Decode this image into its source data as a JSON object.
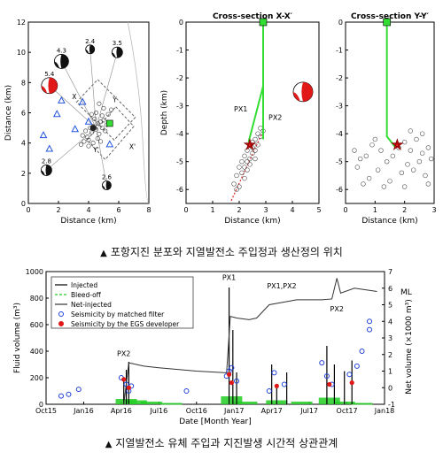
{
  "colors": {
    "injected": "#000000",
    "bleedoff": "#22cc22",
    "net": "#333333",
    "seismic_mf": "#1f3fd6",
    "seismic_dev": "#e01818",
    "well": "#33dd33",
    "beachball_fill": "#111111",
    "beachball_red": "#e01818",
    "station": "#2255dd"
  },
  "chart_data": [
    {
      "type": "scatter",
      "panel": "map",
      "xlabel": "Distance (km)",
      "ylabel": "Distance (km)",
      "xlim": [
        0,
        8
      ],
      "ylim": [
        0,
        12
      ],
      "xticks": [
        0,
        2,
        4,
        6,
        8
      ],
      "yticks": [
        0,
        2,
        4,
        6,
        8,
        10,
        12
      ],
      "annotations": [
        "4.3",
        "2.4",
        "3.5",
        "5.4",
        "X",
        "Y",
        "2.8",
        "2.6",
        "Y'",
        "X'"
      ],
      "stations": [
        [
          2.2,
          6.8
        ],
        [
          3.6,
          6.7
        ],
        [
          1.9,
          5.9
        ],
        [
          4.0,
          5.4
        ],
        [
          1.0,
          4.5
        ],
        [
          3.1,
          4.9
        ],
        [
          1.4,
          3.6
        ],
        [
          5.4,
          3.9
        ]
      ],
      "well_site": [
        5.4,
        5.3
      ],
      "events": [
        [
          4.3,
          5.1
        ],
        [
          4.5,
          4.9
        ],
        [
          4.6,
          5.3
        ],
        [
          4.8,
          5.4
        ],
        [
          4.2,
          4.7
        ],
        [
          4.1,
          5.0
        ],
        [
          4.7,
          4.6
        ],
        [
          4.9,
          5.0
        ],
        [
          5.0,
          5.5
        ],
        [
          4.4,
          5.6
        ],
        [
          3.9,
          4.4
        ],
        [
          3.8,
          4.8
        ],
        [
          4.0,
          4.2
        ],
        [
          4.6,
          4.3
        ],
        [
          5.1,
          4.8
        ],
        [
          4.3,
          4.0
        ],
        [
          3.7,
          4.1
        ],
        [
          5.2,
          5.2
        ],
        [
          4.9,
          5.8
        ],
        [
          4.5,
          6.0
        ],
        [
          5.3,
          5.9
        ],
        [
          4.2,
          5.9
        ],
        [
          3.6,
          4.5
        ],
        [
          5.0,
          6.3
        ],
        [
          4.7,
          6.6
        ],
        [
          5.5,
          6.2
        ],
        [
          4.0,
          3.8
        ],
        [
          3.5,
          3.9
        ],
        [
          4.8,
          4.1
        ]
      ],
      "faults": [
        [
          3.4,
          3.5,
          5.9,
          7.0
        ]
      ]
    },
    {
      "type": "scatter",
      "panel": "cross-x",
      "title": "Cross-section X-X′",
      "xlabel": "Distance (km)",
      "ylabel": "Depth (km)",
      "xlim": [
        0,
        5
      ],
      "ylim": [
        -6.5,
        0
      ],
      "xticks": [
        0,
        1,
        2,
        3,
        4,
        5
      ],
      "yticks": [
        0,
        -1,
        -2,
        -3,
        -4,
        -5,
        -6
      ],
      "labels": [
        "PX1",
        "PX2"
      ],
      "wells": [
        [
          [
            2.9,
            0
          ],
          [
            2.9,
            -2.3
          ],
          [
            2.35,
            -4.3
          ]
        ],
        [
          [
            2.9,
            0
          ],
          [
            2.9,
            -4.2
          ]
        ]
      ],
      "mainshock": [
        2.4,
        -4.4
      ],
      "events": [
        [
          2.4,
          -4.4
        ],
        [
          2.5,
          -4.5
        ],
        [
          2.3,
          -4.6
        ],
        [
          2.6,
          -4.2
        ],
        [
          2.2,
          -4.8
        ],
        [
          2.1,
          -5.0
        ],
        [
          2.4,
          -4.9
        ],
        [
          2.0,
          -5.2
        ],
        [
          2.5,
          -4.7
        ],
        [
          2.7,
          -4.0
        ],
        [
          2.8,
          -3.8
        ],
        [
          1.9,
          -5.5
        ],
        [
          2.3,
          -5.3
        ],
        [
          2.2,
          -5.6
        ],
        [
          1.8,
          -5.8
        ],
        [
          2.6,
          -4.9
        ],
        [
          2.0,
          -5.9
        ],
        [
          2.4,
          -5.1
        ],
        [
          2.7,
          -4.4
        ],
        [
          2.9,
          -3.9
        ],
        [
          2.1,
          -5.4
        ],
        [
          1.9,
          -6.0
        ],
        [
          2.5,
          -4.3
        ],
        [
          2.8,
          -4.1
        ],
        [
          2.3,
          -5.0
        ],
        [
          2.2,
          -5.2
        ],
        [
          2.6,
          -4.6
        ]
      ],
      "lineation": [
        [
          1.7,
          -6.4
        ],
        [
          2.9,
          -3.9
        ]
      ]
    },
    {
      "type": "scatter",
      "panel": "cross-y",
      "title": "Cross-section Y-Y′",
      "xlabel": "Distance (km)",
      "xlim": [
        0,
        3
      ],
      "ylim": [
        -6.5,
        0
      ],
      "xticks": [
        0,
        1,
        2,
        3
      ],
      "well": [
        [
          1.4,
          0
        ],
        [
          1.4,
          -4.1
        ],
        [
          1.7,
          -4.5
        ]
      ],
      "mainshock": [
        1.75,
        -4.4
      ],
      "events": [
        [
          1.8,
          -4.5
        ],
        [
          2.0,
          -4.3
        ],
        [
          2.2,
          -4.6
        ],
        [
          2.4,
          -4.2
        ],
        [
          2.6,
          -4.7
        ],
        [
          1.6,
          -4.8
        ],
        [
          1.4,
          -5.0
        ],
        [
          1.2,
          -4.6
        ],
        [
          0.9,
          -4.4
        ],
        [
          0.7,
          -4.8
        ],
        [
          0.5,
          -4.9
        ],
        [
          0.4,
          -5.2
        ],
        [
          2.8,
          -4.5
        ],
        [
          2.5,
          -5.0
        ],
        [
          2.3,
          -5.3
        ],
        [
          2.1,
          -5.1
        ],
        [
          1.9,
          -5.4
        ],
        [
          2.7,
          -5.5
        ],
        [
          2.9,
          -4.9
        ],
        [
          1.1,
          -5.3
        ],
        [
          0.8,
          -5.6
        ],
        [
          1.5,
          -5.7
        ],
        [
          2.0,
          -5.9
        ],
        [
          0.3,
          -4.6
        ],
        [
          2.6,
          -4.0
        ],
        [
          2.2,
          -3.9
        ],
        [
          1.0,
          -4.2
        ],
        [
          0.6,
          -5.8
        ],
        [
          2.8,
          -5.8
        ],
        [
          1.3,
          -5.9
        ]
      ]
    },
    {
      "type": "line",
      "panel": "timeline",
      "xlabel": "Date [Month Year]",
      "ylabel": "Fluid volume (m³)",
      "y2label": "Net volume (×1000 m³)",
      "mlabel": "ML",
      "xticklabels": [
        "Oct15",
        "Jan16",
        "Apr16",
        "Jul16",
        "Oct16",
        "Jan17",
        "Apr17",
        "Jul17",
        "Oct17",
        "Jan18"
      ],
      "ylim": [
        0,
        1000
      ],
      "yticks": [
        0,
        200,
        400,
        600,
        800,
        1000
      ],
      "y2ticks": [
        -1,
        0,
        1,
        2,
        3,
        4,
        5,
        6,
        7
      ],
      "annotations": [
        "PX2",
        "PX1",
        "PX1,PX2",
        "PX2"
      ],
      "legend": [
        "Injected",
        "Bleed-off",
        "Net-injected",
        "Seismicity by matched filter",
        "Seismicity by the EGS developer"
      ],
      "net_volume_x1000m3": [
        [
          3.1,
          -1.0
        ],
        [
          3.3,
          1.5
        ],
        [
          3.9,
          1.3
        ],
        [
          4.5,
          1.2
        ],
        [
          6.0,
          1.0
        ],
        [
          7.2,
          0.9
        ],
        [
          7.35,
          4.3
        ],
        [
          7.6,
          4.2
        ],
        [
          8.1,
          4.1
        ],
        [
          8.4,
          4.2
        ],
        [
          8.9,
          5.0
        ],
        [
          10.0,
          5.3
        ],
        [
          11.0,
          5.3
        ],
        [
          11.4,
          5.35
        ],
        [
          11.6,
          6.6
        ],
        [
          11.75,
          5.7
        ],
        [
          12.3,
          6.0
        ],
        [
          13.2,
          5.8
        ]
      ],
      "injected_spikes": [
        [
          3.1,
          180
        ],
        [
          3.2,
          260
        ],
        [
          3.3,
          320
        ],
        [
          7.3,
          880
        ],
        [
          7.45,
          560
        ],
        [
          7.6,
          240
        ],
        [
          9.0,
          300
        ],
        [
          9.2,
          120
        ],
        [
          9.6,
          240
        ],
        [
          11.2,
          440
        ],
        [
          11.5,
          300
        ],
        [
          11.9,
          250
        ],
        [
          12.2,
          330
        ]
      ],
      "bleedoff_points": [
        [
          3.2,
          40
        ],
        [
          3.6,
          30
        ],
        [
          4.2,
          20
        ],
        [
          5.0,
          10
        ],
        [
          7.4,
          60
        ],
        [
          8.0,
          20
        ],
        [
          9.2,
          30
        ],
        [
          10.2,
          20
        ],
        [
          11.3,
          50
        ],
        [
          11.9,
          20
        ],
        [
          12.6,
          10
        ]
      ],
      "seismicity_matched_filter_ML": [
        [
          0.6,
          -0.5
        ],
        [
          0.9,
          -0.4
        ],
        [
          1.3,
          -0.1
        ],
        [
          3.0,
          0.6
        ],
        [
          3.2,
          0.2
        ],
        [
          3.3,
          -0.2
        ],
        [
          3.4,
          0.1
        ],
        [
          5.6,
          -0.2
        ],
        [
          7.2,
          0.7
        ],
        [
          7.3,
          1.0
        ],
        [
          7.4,
          1.2
        ],
        [
          7.6,
          0.4
        ],
        [
          8.9,
          -0.2
        ],
        [
          9.1,
          0.9
        ],
        [
          9.5,
          0.2
        ],
        [
          11.0,
          1.5
        ],
        [
          11.2,
          0.7
        ],
        [
          11.4,
          0.2
        ],
        [
          12.1,
          0.8
        ],
        [
          12.4,
          1.3
        ],
        [
          12.6,
          2.2
        ],
        [
          12.9,
          3.5
        ],
        [
          12.9,
          4.0
        ]
      ],
      "seismicity_developer_ML": [
        [
          3.1,
          0.5
        ],
        [
          3.3,
          0.0
        ],
        [
          7.3,
          0.8
        ],
        [
          7.4,
          0.3
        ],
        [
          9.2,
          0.1
        ],
        [
          11.3,
          0.2
        ],
        [
          12.2,
          0.3
        ]
      ]
    }
  ],
  "captions": {
    "top": "포항지진 분포와 지열발전소 주입정과 생산정의 위치",
    "bottom": "지열발전소 유체 주입과 지진발생 시간적 상관관계"
  }
}
